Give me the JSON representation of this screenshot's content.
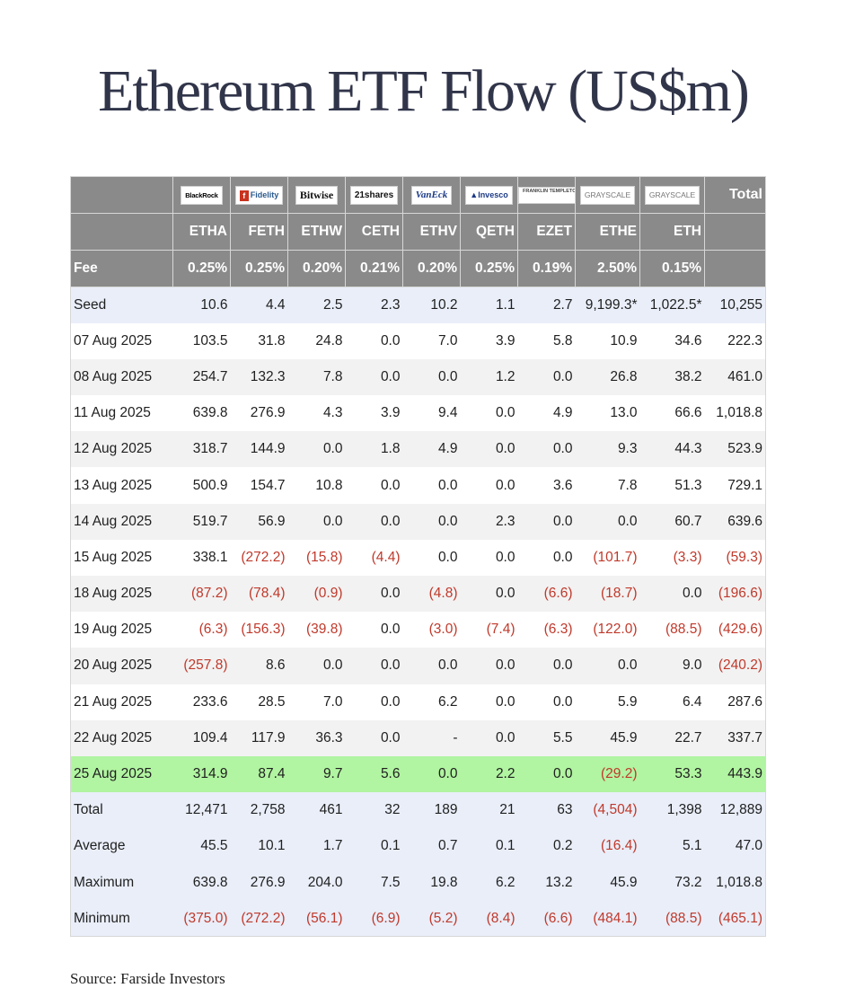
{
  "title": "Ethereum ETF Flow (US$m)",
  "source": "Source: Farside Investors",
  "header": {
    "total_label": "Total",
    "fee_label": "Fee",
    "issuers": [
      {
        "name": "BlackRock",
        "logo": "blackrock-logo"
      },
      {
        "name": "Fidelity",
        "logo": "fidelity-logo"
      },
      {
        "name": "Bitwise",
        "logo": "bitwise-logo"
      },
      {
        "name": "21shares",
        "logo": "21shares-logo"
      },
      {
        "name": "VanEck",
        "logo": "vaneck-logo"
      },
      {
        "name": "Invesco",
        "logo": "invesco-logo"
      },
      {
        "name": "FRANKLIN TEMPLETON",
        "logo": "franklin-templeton-logo"
      },
      {
        "name": "GRAYSCALE",
        "logo": "grayscale-logo"
      },
      {
        "name": "GRAYSCALE",
        "logo": "grayscale-logo"
      }
    ],
    "tickers": [
      "ETHA",
      "FETH",
      "ETHW",
      "CETH",
      "ETHV",
      "QETH",
      "EZET",
      "ETHE",
      "ETH"
    ],
    "fees": [
      "0.25%",
      "0.25%",
      "0.20%",
      "0.21%",
      "0.20%",
      "0.25%",
      "0.19%",
      "2.50%",
      "0.15%"
    ]
  },
  "rows": [
    {
      "label": "Seed",
      "values": [
        "10.6",
        "4.4",
        "2.5",
        "2.3",
        "10.2",
        "1.1",
        "2.7",
        "9,199.3*",
        "1,022.5*",
        "10,255"
      ],
      "style": "seed"
    },
    {
      "label": "07 Aug 2025",
      "values": [
        "103.5",
        "31.8",
        "24.8",
        "0.0",
        "7.0",
        "3.9",
        "5.8",
        "10.9",
        "34.6",
        "222.3"
      ],
      "style": "odd"
    },
    {
      "label": "08 Aug 2025",
      "values": [
        "254.7",
        "132.3",
        "7.8",
        "0.0",
        "0.0",
        "1.2",
        "0.0",
        "26.8",
        "38.2",
        "461.0"
      ],
      "style": "even"
    },
    {
      "label": "11 Aug 2025",
      "values": [
        "639.8",
        "276.9",
        "4.3",
        "3.9",
        "9.4",
        "0.0",
        "4.9",
        "13.0",
        "66.6",
        "1,018.8"
      ],
      "style": "odd"
    },
    {
      "label": "12 Aug 2025",
      "values": [
        "318.7",
        "144.9",
        "0.0",
        "1.8",
        "4.9",
        "0.0",
        "0.0",
        "9.3",
        "44.3",
        "523.9"
      ],
      "style": "even"
    },
    {
      "label": "13 Aug 2025",
      "values": [
        "500.9",
        "154.7",
        "10.8",
        "0.0",
        "0.0",
        "0.0",
        "3.6",
        "7.8",
        "51.3",
        "729.1"
      ],
      "style": "odd"
    },
    {
      "label": "14 Aug 2025",
      "values": [
        "519.7",
        "56.9",
        "0.0",
        "0.0",
        "0.0",
        "2.3",
        "0.0",
        "0.0",
        "60.7",
        "639.6"
      ],
      "style": "even"
    },
    {
      "label": "15 Aug 2025",
      "values": [
        "338.1",
        "(272.2)",
        "(15.8)",
        "(4.4)",
        "0.0",
        "0.0",
        "0.0",
        "(101.7)",
        "(3.3)",
        "(59.3)"
      ],
      "style": "odd"
    },
    {
      "label": "18 Aug 2025",
      "values": [
        "(87.2)",
        "(78.4)",
        "(0.9)",
        "0.0",
        "(4.8)",
        "0.0",
        "(6.6)",
        "(18.7)",
        "0.0",
        "(196.6)"
      ],
      "style": "even"
    },
    {
      "label": "19 Aug 2025",
      "values": [
        "(6.3)",
        "(156.3)",
        "(39.8)",
        "0.0",
        "(3.0)",
        "(7.4)",
        "(6.3)",
        "(122.0)",
        "(88.5)",
        "(429.6)"
      ],
      "style": "odd"
    },
    {
      "label": "20 Aug 2025",
      "values": [
        "(257.8)",
        "8.6",
        "0.0",
        "0.0",
        "0.0",
        "0.0",
        "0.0",
        "0.0",
        "9.0",
        "(240.2)"
      ],
      "style": "even"
    },
    {
      "label": "21 Aug 2025",
      "values": [
        "233.6",
        "28.5",
        "7.0",
        "0.0",
        "6.2",
        "0.0",
        "0.0",
        "5.9",
        "6.4",
        "287.6"
      ],
      "style": "odd"
    },
    {
      "label": "22 Aug 2025",
      "values": [
        "109.4",
        "117.9",
        "36.3",
        "0.0",
        "-",
        "0.0",
        "5.5",
        "45.9",
        "22.7",
        "337.7"
      ],
      "style": "even"
    },
    {
      "label": "25 Aug 2025",
      "values": [
        "314.9",
        "87.4",
        "9.7",
        "5.6",
        "0.0",
        "2.2",
        "0.0",
        "(29.2)",
        "53.3",
        "443.9"
      ],
      "style": "highlight"
    },
    {
      "label": "Total",
      "values": [
        "12,471",
        "2,758",
        "461",
        "32",
        "189",
        "21",
        "63",
        "(4,504)",
        "1,398",
        "12,889"
      ],
      "style": "summary"
    },
    {
      "label": "Average",
      "values": [
        "45.5",
        "10.1",
        "1.7",
        "0.1",
        "0.7",
        "0.1",
        "0.2",
        "(16.4)",
        "5.1",
        "47.0"
      ],
      "style": "summary"
    },
    {
      "label": "Maximum",
      "values": [
        "639.8",
        "276.9",
        "204.0",
        "7.5",
        "19.8",
        "6.2",
        "13.2",
        "45.9",
        "73.2",
        "1,018.8"
      ],
      "style": "summary"
    },
    {
      "label": "Minimum",
      "values": [
        "(375.0)",
        "(272.2)",
        "(56.1)",
        "(6.9)",
        "(5.2)",
        "(8.4)",
        "(6.6)",
        "(484.1)",
        "(88.5)",
        "(465.1)"
      ],
      "style": "summary"
    }
  ],
  "colors": {
    "header_bg": "#8a8a8a",
    "negative": "#c0392b",
    "highlight_row": "#b1f4a1",
    "seed_summary_bg": "#e9eef9",
    "stripe_bg": "#f2f2f2",
    "title": "#31354a"
  }
}
